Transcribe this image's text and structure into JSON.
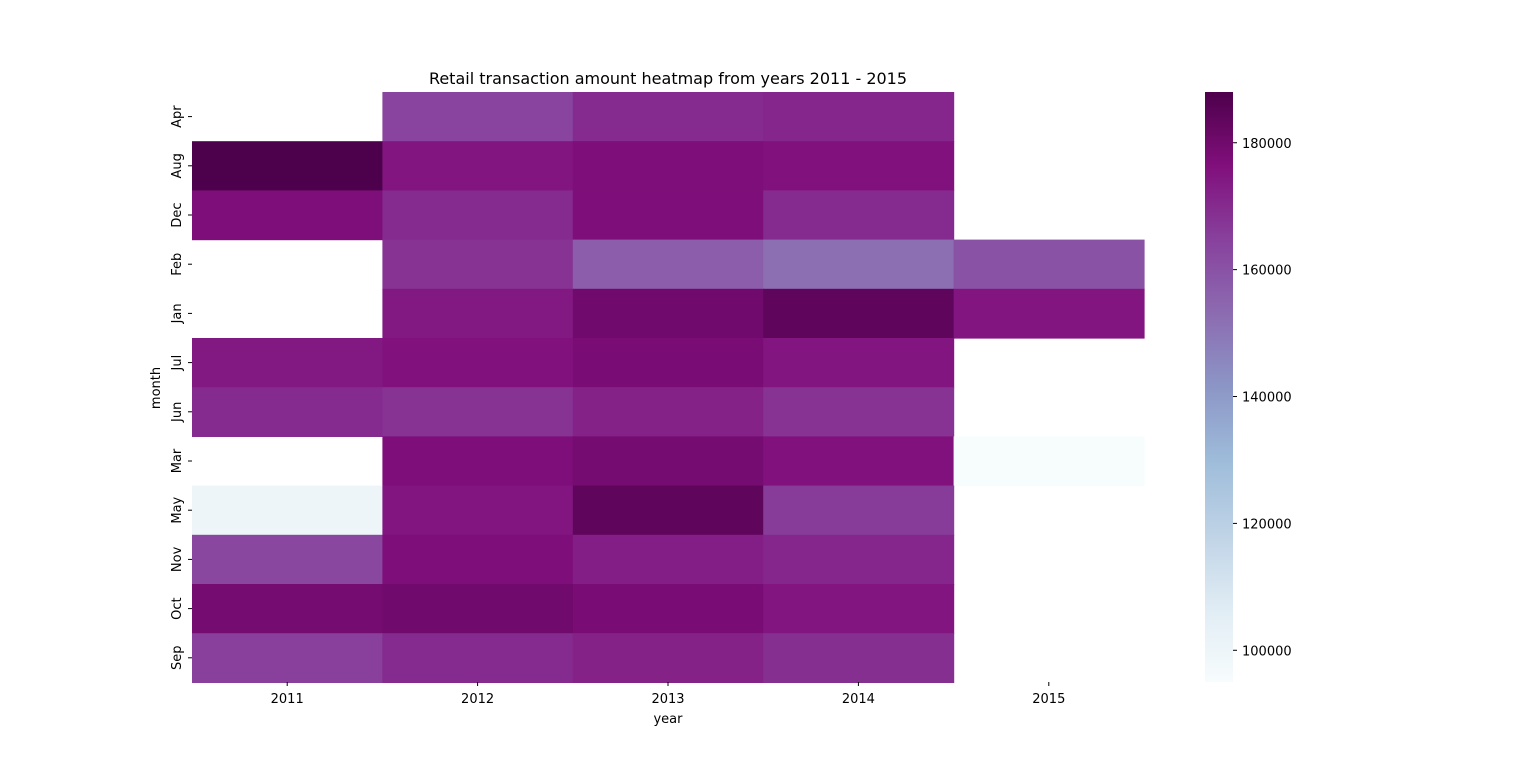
{
  "chart_data": {
    "type": "heatmap",
    "title": "Retail transaction amount heatmap from years 2011 - 2015",
    "xlabel": "year",
    "ylabel": "month",
    "x": [
      "2011",
      "2012",
      "2013",
      "2014",
      "2015"
    ],
    "y": [
      "Apr",
      "Aug",
      "Dec",
      "Feb",
      "Jan",
      "Jul",
      "Jun",
      "Mar",
      "May",
      "Nov",
      "Oct",
      "Sep"
    ],
    "values": [
      [
        null,
        164000,
        170000,
        171000,
        null
      ],
      [
        188000,
        175000,
        177000,
        176000,
        null
      ],
      [
        177000,
        170000,
        177000,
        170000,
        null
      ],
      [
        null,
        168000,
        157000,
        152000,
        160000
      ],
      [
        null,
        174000,
        180000,
        184000,
        175000
      ],
      [
        174000,
        176000,
        178000,
        175000,
        null
      ],
      [
        170000,
        168000,
        172000,
        168000,
        null
      ],
      [
        null,
        177000,
        179000,
        176000,
        95000
      ],
      [
        100000,
        175000,
        184000,
        166000,
        null
      ],
      [
        163000,
        177000,
        173000,
        171000,
        null
      ],
      [
        179000,
        180000,
        178000,
        175000,
        null
      ],
      [
        165000,
        170000,
        172000,
        169000,
        null
      ]
    ],
    "colorbar": {
      "colormap": "BuPu",
      "range": [
        95000,
        188000
      ],
      "ticks": [
        "100000",
        "120000",
        "140000",
        "160000",
        "180000"
      ]
    },
    "grid": false
  }
}
